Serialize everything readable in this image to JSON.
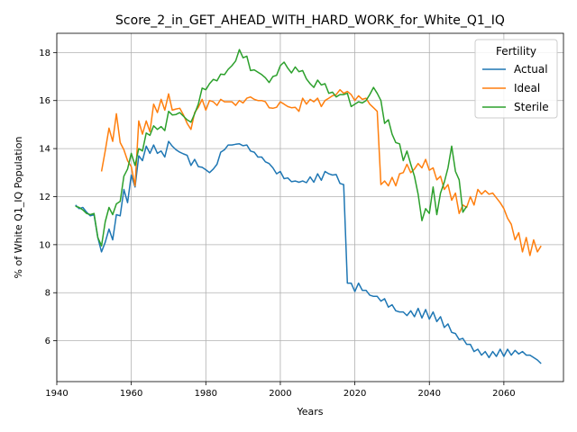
{
  "chart_data": {
    "type": "line",
    "title": "Score_2_in_GET_AHEAD_WITH_HARD_WORK_for_White_Q1_IQ",
    "xlabel": "Years",
    "ylabel": "% of White Q1_IQ Population",
    "xlim": [
      1940,
      2076
    ],
    "ylim": [
      4.3,
      18.8
    ],
    "xticks": [
      1940,
      1960,
      1980,
      2000,
      2020,
      2040,
      2060
    ],
    "yticks": [
      6,
      8,
      10,
      12,
      14,
      16,
      18
    ],
    "grid": true,
    "legend_title": "Fertility",
    "legend_position": "top-right",
    "series": [
      {
        "name": "Actual",
        "color": "#1f77b4",
        "x": [
          1945,
          1946,
          1947,
          1948,
          1949,
          1950,
          1951,
          1952,
          1953,
          1954,
          1955,
          1956,
          1957,
          1958,
          1959,
          1960,
          1961,
          1962,
          1963,
          1964,
          1965,
          1966,
          1967,
          1968,
          1969,
          1970,
          1971,
          1972,
          1973,
          1974,
          1975,
          1976,
          1977,
          1978,
          1979,
          1980,
          1981,
          1982,
          1983,
          1984,
          1985,
          1986,
          1987,
          1988,
          1989,
          1990,
          1991,
          1992,
          1993,
          1994,
          1995,
          1996,
          1997,
          1998,
          1999,
          2000,
          2001,
          2002,
          2003,
          2004,
          2005,
          2006,
          2007,
          2008,
          2009,
          2010,
          2011,
          2012,
          2013,
          2014,
          2015,
          2016,
          2017,
          2018,
          2019,
          2020,
          2021,
          2022,
          2023,
          2024,
          2025,
          2026,
          2027,
          2028,
          2029,
          2030,
          2031,
          2032,
          2033,
          2034,
          2035,
          2036,
          2037,
          2038,
          2039,
          2040,
          2041,
          2042,
          2043,
          2044,
          2045,
          2046,
          2047,
          2048,
          2049,
          2050,
          2051,
          2052,
          2053,
          2054,
          2055,
          2056,
          2057,
          2058,
          2059,
          2060,
          2061,
          2062,
          2063,
          2064,
          2065,
          2066,
          2067,
          2068,
          2069,
          2070
        ],
        "values": [
          11.65,
          11.5,
          11.55,
          11.35,
          11.2,
          11.25,
          10.3,
          9.7,
          10.1,
          10.65,
          10.2,
          11.25,
          11.2,
          12.3,
          11.75,
          12.9,
          12.4,
          13.7,
          13.5,
          14.1,
          13.8,
          14.15,
          13.8,
          13.9,
          13.65,
          14.3,
          14.1,
          13.95,
          13.85,
          13.78,
          13.72,
          13.3,
          13.55,
          13.25,
          13.22,
          13.12,
          13.0,
          13.15,
          13.35,
          13.85,
          13.95,
          14.15,
          14.15,
          14.18,
          14.2,
          14.12,
          14.15,
          13.9,
          13.85,
          13.65,
          13.65,
          13.45,
          13.38,
          13.2,
          12.95,
          13.05,
          12.75,
          12.78,
          12.62,
          12.65,
          12.6,
          12.65,
          12.58,
          12.82,
          12.6,
          12.95,
          12.68,
          13.05,
          12.95,
          12.9,
          12.92,
          12.55,
          12.5,
          8.4,
          8.4,
          8.05,
          8.4,
          8.1,
          8.1,
          7.9,
          7.85,
          7.85,
          7.65,
          7.75,
          7.4,
          7.5,
          7.25,
          7.2,
          7.2,
          7.05,
          7.25,
          7.0,
          7.35,
          6.95,
          7.3,
          6.9,
          7.2,
          6.8,
          7.0,
          6.55,
          6.7,
          6.35,
          6.3,
          6.05,
          6.1,
          5.85,
          5.85,
          5.55,
          5.65,
          5.4,
          5.55,
          5.3,
          5.55,
          5.35,
          5.65,
          5.35,
          5.65,
          5.4,
          5.6,
          5.45,
          5.55,
          5.4,
          5.4,
          5.3,
          5.2,
          5.05
        ]
      },
      {
        "name": "Ideal",
        "color": "#ff7f0e",
        "x": [
          1952,
          1953,
          1954,
          1955,
          1956,
          1957,
          1958,
          1959,
          1960,
          1961,
          1962,
          1963,
          1964,
          1965,
          1966,
          1967,
          1968,
          1969,
          1970,
          1971,
          1972,
          1973,
          1974,
          1975,
          1976,
          1977,
          1978,
          1979,
          1980,
          1981,
          1982,
          1983,
          1984,
          1985,
          1986,
          1987,
          1988,
          1989,
          1990,
          1991,
          1992,
          1993,
          1994,
          1995,
          1996,
          1997,
          1998,
          1999,
          2000,
          2001,
          2002,
          2003,
          2004,
          2005,
          2006,
          2007,
          2008,
          2009,
          2010,
          2011,
          2012,
          2013,
          2014,
          2015,
          2016,
          2017,
          2018,
          2019,
          2020,
          2021,
          2022,
          2023,
          2024,
          2025,
          2026,
          2027,
          2028,
          2029,
          2030,
          2031,
          2032,
          2033,
          2034,
          2035,
          2036,
          2037,
          2038,
          2039,
          2040,
          2041,
          2042,
          2043,
          2044,
          2045,
          2046,
          2047,
          2048,
          2049,
          2050,
          2051,
          2052,
          2053,
          2054,
          2055,
          2056,
          2057,
          2058,
          2059,
          2060,
          2061,
          2062,
          2063,
          2064,
          2065,
          2066,
          2067,
          2068,
          2069,
          2070
        ],
        "values": [
          13.05,
          13.9,
          14.85,
          14.3,
          15.45,
          14.25,
          13.95,
          13.5,
          13.25,
          12.45,
          15.15,
          14.6,
          15.15,
          14.7,
          15.85,
          15.5,
          16.05,
          15.6,
          16.28,
          15.6,
          15.65,
          15.68,
          15.4,
          15.05,
          14.8,
          15.5,
          15.72,
          16.05,
          15.6,
          16.0,
          15.95,
          15.8,
          16.05,
          15.95,
          15.95,
          15.95,
          15.8,
          16.0,
          15.9,
          16.1,
          16.15,
          16.05,
          16.0,
          16.0,
          15.95,
          15.7,
          15.68,
          15.72,
          15.95,
          15.85,
          15.75,
          15.7,
          15.72,
          15.55,
          16.1,
          15.85,
          16.05,
          15.95,
          16.1,
          15.75,
          16.0,
          16.1,
          16.2,
          16.25,
          16.45,
          16.3,
          16.38,
          16.25,
          16.0,
          16.2,
          16.05,
          16.1,
          15.85,
          15.7,
          15.55,
          12.5,
          12.65,
          12.45,
          12.8,
          12.45,
          12.95,
          13.0,
          13.35,
          13.0,
          13.15,
          13.38,
          13.2,
          13.55,
          13.1,
          13.2,
          12.7,
          12.85,
          12.3,
          12.5,
          11.85,
          12.15,
          11.3,
          11.65,
          11.55,
          12.0,
          11.65,
          12.3,
          12.1,
          12.25,
          12.1,
          12.15,
          11.95,
          11.75,
          11.5,
          11.1,
          10.85,
          10.2,
          10.5,
          9.7,
          10.3,
          9.55,
          10.2,
          9.7,
          9.95
        ]
      },
      {
        "name": "Sterile",
        "color": "#2ca02c",
        "x": [
          1945,
          1946,
          1947,
          1948,
          1949,
          1950,
          1951,
          1952,
          1953,
          1954,
          1955,
          1956,
          1957,
          1958,
          1959,
          1960,
          1961,
          1962,
          1963,
          1964,
          1965,
          1966,
          1967,
          1968,
          1969,
          1970,
          1971,
          1972,
          1973,
          1974,
          1975,
          1976,
          1977,
          1978,
          1979,
          1980,
          1981,
          1982,
          1983,
          1984,
          1985,
          1986,
          1987,
          1988,
          1989,
          1990,
          1991,
          1992,
          1993,
          1994,
          1995,
          1996,
          1997,
          1998,
          1999,
          2000,
          2001,
          2002,
          2003,
          2004,
          2005,
          2006,
          2007,
          2008,
          2009,
          2010,
          2011,
          2012,
          2013,
          2014,
          2015,
          2016,
          2017,
          2018,
          2019,
          2020,
          2021,
          2022,
          2023,
          2024,
          2025,
          2026,
          2027,
          2028,
          2029,
          2030,
          2031,
          2032,
          2033,
          2034,
          2035,
          2036,
          2037,
          2038,
          2039,
          2040,
          2041,
          2042,
          2043,
          2044,
          2045,
          2046,
          2047,
          2048,
          2049,
          2050
        ],
        "values": [
          11.6,
          11.55,
          11.45,
          11.3,
          11.25,
          11.3,
          10.3,
          9.95,
          10.95,
          11.55,
          11.25,
          11.7,
          11.8,
          12.85,
          13.15,
          13.8,
          13.3,
          14.0,
          13.9,
          14.65,
          14.55,
          14.95,
          14.8,
          14.92,
          14.75,
          15.55,
          15.4,
          15.42,
          15.5,
          15.35,
          15.2,
          15.1,
          15.45,
          15.85,
          16.52,
          16.45,
          16.7,
          16.88,
          16.82,
          17.1,
          17.08,
          17.3,
          17.45,
          17.65,
          18.12,
          17.78,
          17.85,
          17.25,
          17.28,
          17.18,
          17.08,
          16.95,
          16.75,
          17.0,
          17.05,
          17.45,
          17.6,
          17.35,
          17.15,
          17.4,
          17.2,
          17.25,
          16.9,
          16.7,
          16.55,
          16.85,
          16.65,
          16.7,
          16.3,
          16.35,
          16.15,
          16.25,
          16.25,
          16.3,
          15.75,
          15.85,
          15.95,
          15.9,
          16.0,
          16.25,
          16.55,
          16.3,
          16.0,
          15.05,
          15.2,
          14.6,
          14.25,
          14.2,
          13.5,
          13.9,
          13.35,
          12.85,
          12.1,
          11.0,
          11.5,
          11.3,
          12.4,
          11.25,
          12.15,
          12.6,
          13.2,
          14.1,
          13.05,
          12.7,
          11.35,
          11.6
        ]
      }
    ]
  }
}
